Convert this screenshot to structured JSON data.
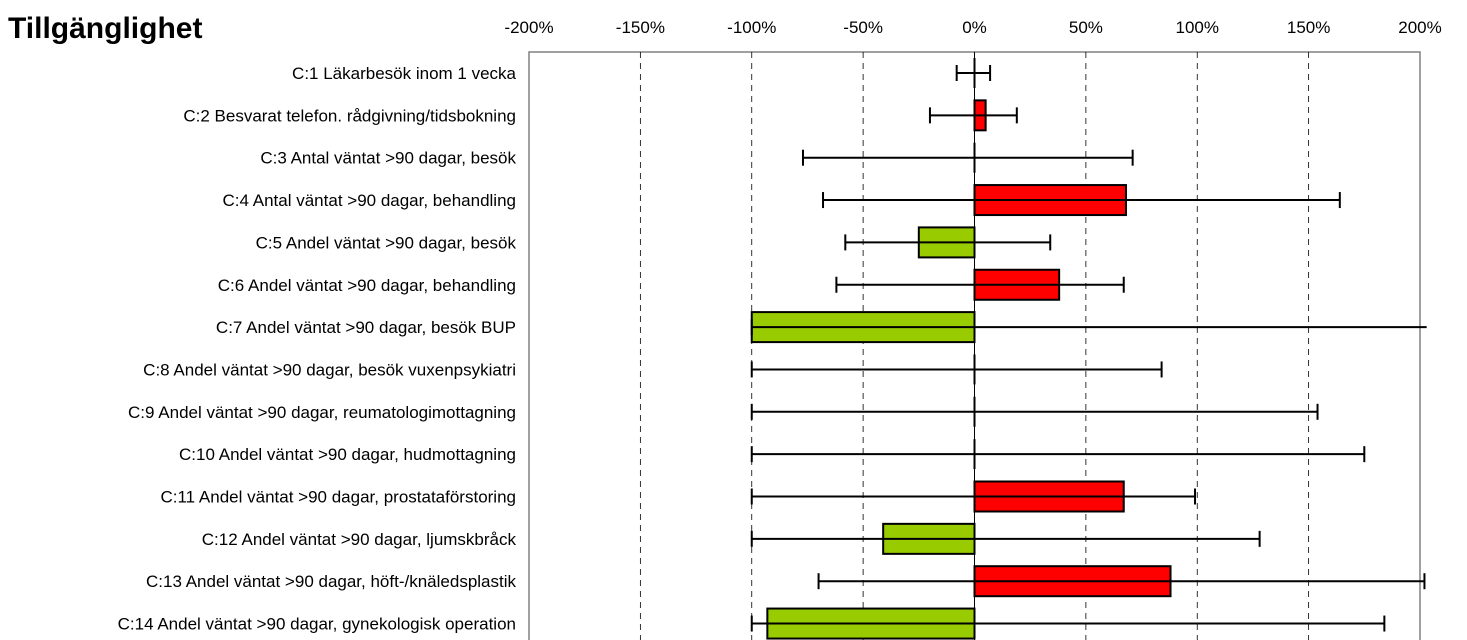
{
  "chart_data": {
    "type": "bar",
    "orientation": "horizontal",
    "title": "Tillgänglighet",
    "xlim": [
      -200,
      200
    ],
    "x_ticks": [
      -200,
      -150,
      -100,
      -50,
      0,
      50,
      100,
      150,
      200
    ],
    "x_tick_labels": [
      "-200%",
      "-150%",
      "-100%",
      "-50%",
      "0%",
      "50%",
      "100%",
      "150%",
      "200%"
    ],
    "x_axis_position": "top",
    "grid": "vertical dashed",
    "colors": {
      "positive": "#ff0000",
      "negative": "#99cc00"
    },
    "categories": [
      "C:1 Läkarbesök inom 1 vecka",
      "C:2 Besvarat telefon. rådgivning/tidsbokning",
      "C:3 Antal väntat >90 dagar, besök",
      "C:4 Antal väntat >90 dagar, behandling",
      "C:5 Andel väntat >90 dagar, besök",
      "C:6 Andel väntat >90 dagar, behandling",
      "C:7 Andel väntat >90 dagar, besök BUP",
      "C:8 Andel väntat >90 dagar, besök vuxenpsykiatri",
      "C:9 Andel väntat >90 dagar, reumatologimottagning",
      "C:10 Andel väntat >90 dagar, hudmottagning",
      "C:11 Andel väntat >90 dagar, prostataförstoring",
      "C:12 Andel väntat >90 dagar, ljumskbråck",
      "C:13 Andel väntat >90 dagar, höft-/knäledsplastik",
      "C:14 Andel väntat >90 dagar, gynekologisk operation"
    ],
    "values": [
      0,
      5,
      0,
      68,
      -25,
      38,
      -100,
      0,
      0,
      0,
      67,
      -41,
      88,
      -93
    ],
    "error_low": [
      -8,
      -20,
      -77,
      -68,
      -58,
      -62,
      -100,
      -100,
      -100,
      -100,
      -100,
      -100,
      -70,
      -100
    ],
    "error_high": [
      7,
      19,
      71,
      164,
      34,
      67,
      203,
      84,
      154,
      175,
      99,
      128,
      202,
      184
    ],
    "error_cap": [
      true,
      true,
      true,
      true,
      true,
      true,
      false,
      true,
      true,
      true,
      true,
      true,
      true,
      true
    ]
  }
}
